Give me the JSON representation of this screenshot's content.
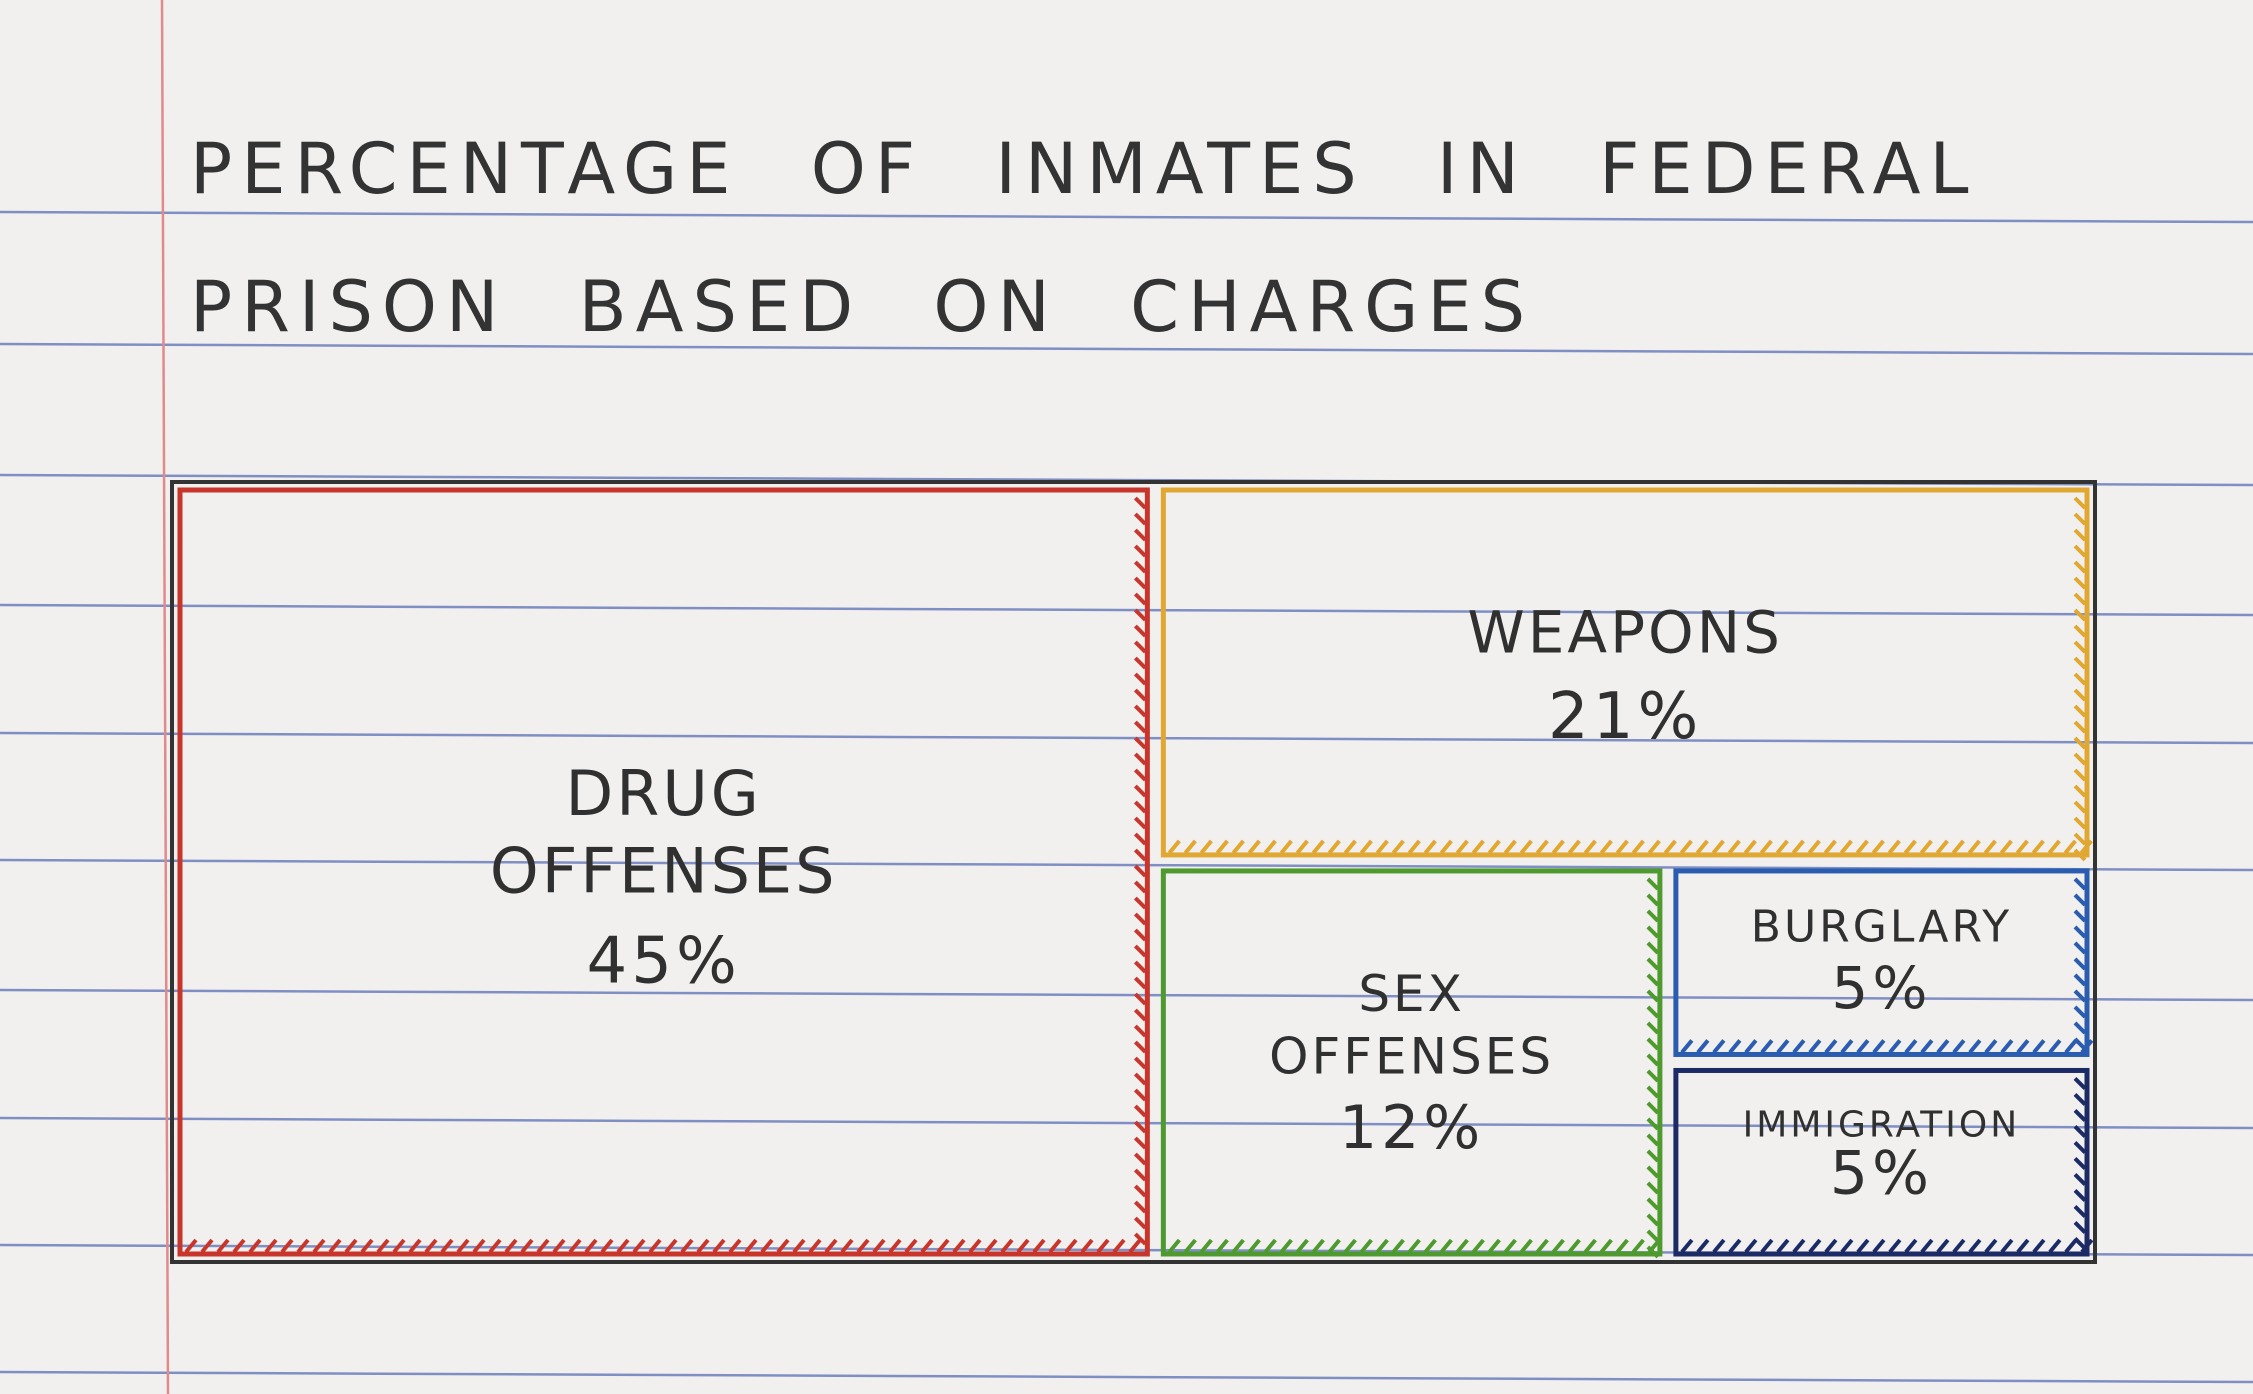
{
  "chart_data": {
    "type": "treemap",
    "title": "PERCENTAGE OF INMATES IN FEDERAL PRISON BASED ON CHARGES",
    "unit": "%",
    "items": [
      {
        "label": "DRUG OFFENSES",
        "value": 45,
        "value_label": "45%",
        "color": "#c8352b"
      },
      {
        "label": "WEAPONS",
        "value": 21,
        "value_label": "21%",
        "color": "#e0a832"
      },
      {
        "label": "SEX OFFENSES",
        "value": 12,
        "value_label": "12%",
        "color": "#4f9a2f"
      },
      {
        "label": "BURGLARY",
        "value": 5,
        "value_label": "5%",
        "color": "#2a5db0"
      },
      {
        "label": "IMMIGRATION",
        "value": 5,
        "value_label": "5%",
        "color": "#1c2a66"
      }
    ]
  },
  "colors": {
    "paper": "#f1f0ee",
    "ruled_line": "#5a6fb5",
    "margin_line": "#e08a8a",
    "ink": "#333333"
  }
}
